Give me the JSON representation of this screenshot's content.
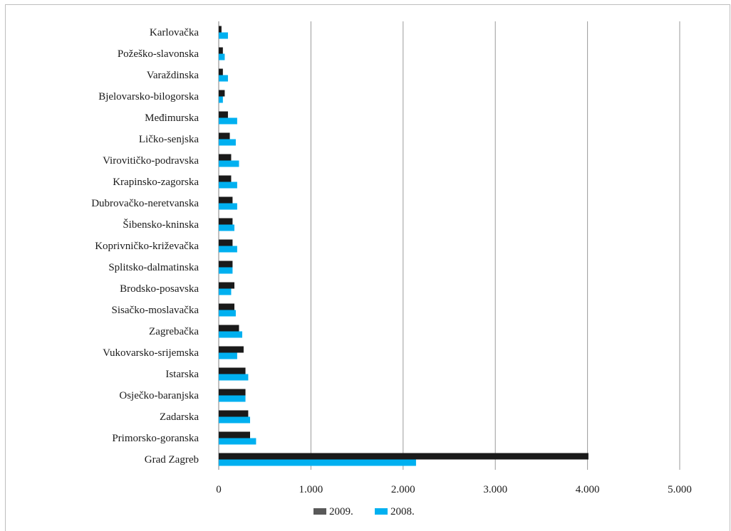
{
  "chart_data": {
    "type": "bar",
    "orientation": "horizontal",
    "categories": [
      "Karlovačka",
      "Požeško-slavonska",
      "Varaždinska",
      "Bjelovarsko-bilogorska",
      "Međimurska",
      "Ličko-senjska",
      "Virovitičko-podravska",
      "Krapinsko-zagorska",
      "Dubrovačko-neretvanska",
      "Šibensko-kninska",
      "Koprivničko-križevačka",
      "Splitsko-dalmatinska",
      "Brodsko-posavska",
      "Sisačko-moslavačka",
      "Zagrebačka",
      "Vukovarsko-srijemska",
      "Istarska",
      "Osječko-baranjska",
      "Zadarska",
      "Primorsko-goranska",
      "Grad Zagreb"
    ],
    "series": [
      {
        "name": "2009.",
        "color": "#1a1a1a",
        "values": [
          30,
          45,
          45,
          65,
          100,
          120,
          135,
          135,
          150,
          150,
          150,
          150,
          170,
          170,
          220,
          270,
          290,
          290,
          320,
          340,
          4010
        ]
      },
      {
        "name": "2008.",
        "color": "#00b0f0",
        "values": [
          100,
          65,
          100,
          45,
          200,
          185,
          220,
          200,
          200,
          170,
          200,
          150,
          135,
          185,
          255,
          200,
          320,
          290,
          340,
          405,
          2140
        ]
      }
    ],
    "xlim": [
      0,
      5000
    ],
    "x_ticks": [
      0,
      1000,
      2000,
      3000,
      4000,
      5000
    ],
    "x_tick_labels": [
      "0",
      "1.000",
      "2.000",
      "3.000",
      "4.000",
      "5.000"
    ],
    "grid": "vertical",
    "legend_position": "bottom",
    "title": "",
    "xlabel": "",
    "ylabel": ""
  }
}
